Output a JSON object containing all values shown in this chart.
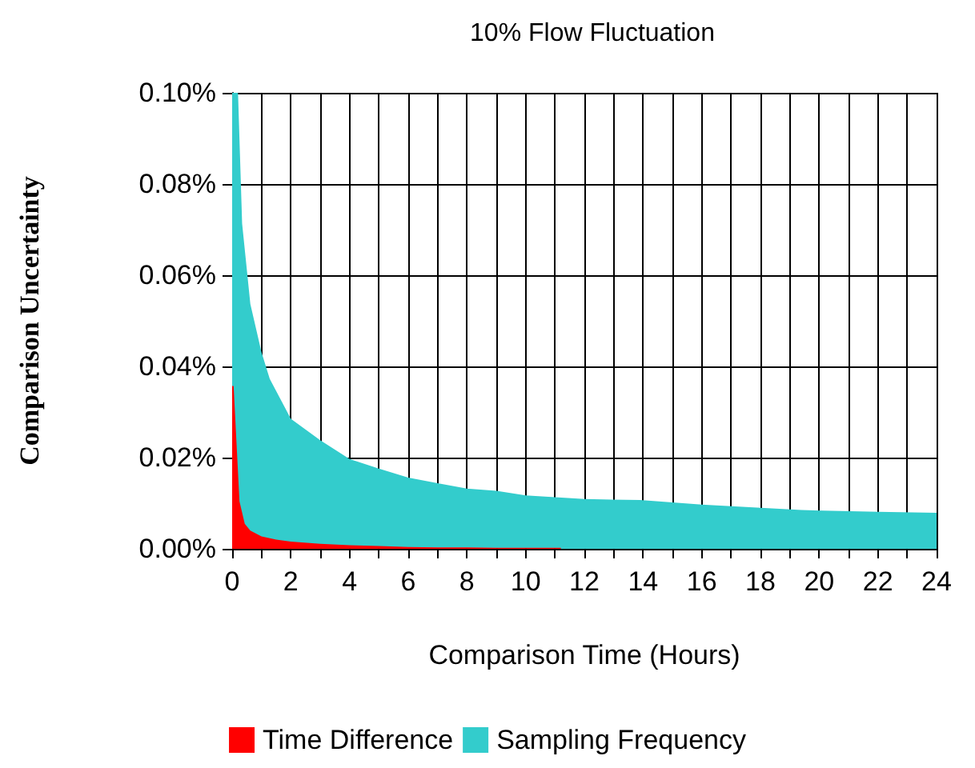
{
  "chart_data": {
    "type": "area",
    "title": "10% Flow Fluctuation",
    "xlabel": "Comparison Time (Hours)",
    "ylabel": "Comparison Uncertainty",
    "series": [
      {
        "name": "Time Difference",
        "color": "#ff0000",
        "x": [
          0,
          0.05,
          0.25,
          0.43,
          0.62,
          1,
          1.5,
          2,
          3,
          4,
          5,
          6,
          7,
          8,
          9,
          10,
          11.2
        ],
        "values": [
          0.0357,
          0.0357,
          0.0104,
          0.0055,
          0.004,
          0.0027,
          0.002,
          0.0016,
          0.0011,
          0.0008,
          0.0006,
          0.0004,
          0.0003,
          0.0003,
          0.0002,
          0.0002,
          0.0002
        ]
      },
      {
        "name": "Sampling Frequency",
        "color": "#33cccc",
        "x": [
          0,
          0.2,
          0.34,
          0.62,
          1,
          1.28,
          2,
          3,
          4,
          5,
          6,
          7,
          8,
          9,
          10,
          11,
          12,
          13.9,
          16,
          19.4,
          22,
          24
        ],
        "values": [
          0.1,
          0.1,
          0.0713,
          0.0537,
          0.0431,
          0.0373,
          0.0285,
          0.0238,
          0.0197,
          0.0176,
          0.0156,
          0.0144,
          0.0132,
          0.0127,
          0.0117,
          0.0113,
          0.0109,
          0.0107,
          0.0097,
          0.0085,
          0.0081,
          0.0079
        ]
      }
    ],
    "xlim": [
      0,
      24
    ],
    "xticks": [
      0,
      {
        "value": 1,
        "label": null
      },
      2,
      {
        "value": 3,
        "label": null
      },
      4,
      {
        "value": 5,
        "label": null
      },
      6,
      {
        "value": 7,
        "label": null
      },
      8,
      {
        "value": 9,
        "label": null
      },
      10,
      {
        "value": 11,
        "label": null
      },
      12,
      {
        "value": 13,
        "label": null
      },
      14,
      {
        "value": 15,
        "label": null
      },
      16,
      {
        "value": 17,
        "label": null
      },
      18,
      {
        "value": 19,
        "label": null
      },
      20,
      {
        "value": 21,
        "label": null
      },
      22,
      {
        "value": 23,
        "label": null
      },
      24
    ],
    "ylim": [
      0,
      0.1
    ],
    "yticks": [
      {
        "value": 0,
        "label": "0.00%"
      },
      {
        "value": 0.02,
        "label": "0.02%"
      },
      {
        "value": 0.04,
        "label": "0.04%"
      },
      {
        "value": 0.06,
        "label": "0.06%"
      },
      {
        "value": 0.08,
        "label": "0.08%"
      },
      {
        "value": 0.1,
        "label": "0.10%"
      }
    ],
    "grid": true,
    "legend": "bottom",
    "marker": "none"
  }
}
